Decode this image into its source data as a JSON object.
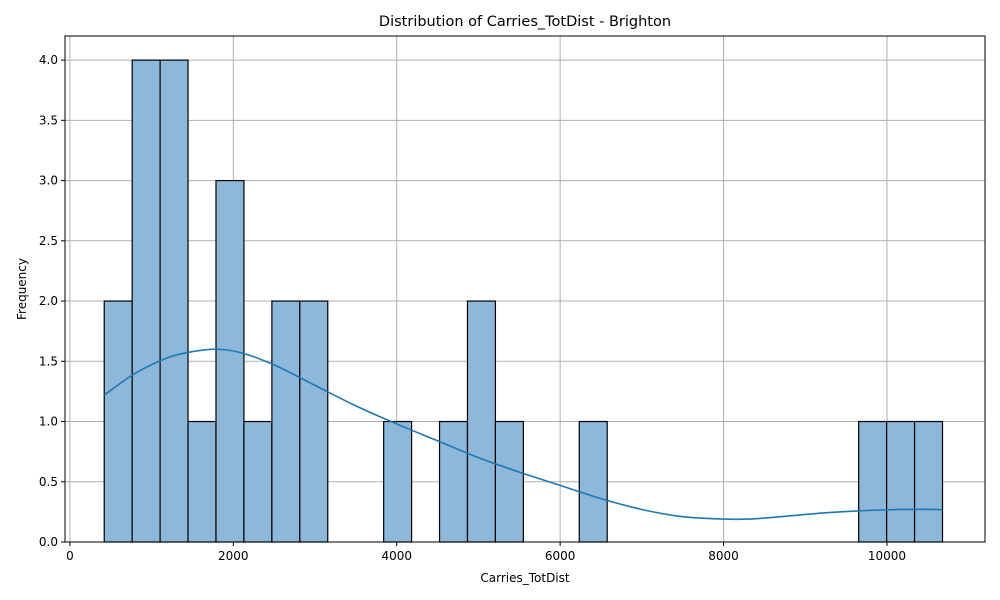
{
  "chart_data": {
    "type": "bar",
    "title": "Distribution of Carries_TotDist - Brighton",
    "xlabel": "Carries_TotDist",
    "ylabel": "Frequency",
    "xlim": [
      -60,
      11200
    ],
    "ylim": [
      0,
      4.2
    ],
    "xticks": [
      0,
      2000,
      4000,
      6000,
      8000,
      10000
    ],
    "xtick_labels": [
      "0",
      "2000",
      "4000",
      "6000",
      "8000",
      "10000"
    ],
    "yticks": [
      0,
      0.5,
      1.0,
      1.5,
      2.0,
      2.5,
      3.0,
      3.5,
      4.0
    ],
    "ytick_labels": [
      "0.0",
      "0.5",
      "1.0",
      "1.5",
      "2.0",
      "2.5",
      "3.0",
      "3.5",
      "4.0"
    ],
    "grid": true,
    "bar_color": "#8db8da",
    "bar_edge_color": "#000000",
    "kde_color": "#1f77b4",
    "bins": [
      {
        "x0": 420,
        "x1": 762,
        "count": 2
      },
      {
        "x0": 762,
        "x1": 1104,
        "count": 4
      },
      {
        "x0": 1104,
        "x1": 1446,
        "count": 4
      },
      {
        "x0": 1446,
        "x1": 1788,
        "count": 1
      },
      {
        "x0": 1788,
        "x1": 2130,
        "count": 3
      },
      {
        "x0": 2130,
        "x1": 2472,
        "count": 1
      },
      {
        "x0": 2472,
        "x1": 2814,
        "count": 2
      },
      {
        "x0": 2814,
        "x1": 3156,
        "count": 2
      },
      {
        "x0": 3156,
        "x1": 3498,
        "count": 0
      },
      {
        "x0": 3498,
        "x1": 3840,
        "count": 0
      },
      {
        "x0": 3840,
        "x1": 4182,
        "count": 1
      },
      {
        "x0": 4182,
        "x1": 4524,
        "count": 0
      },
      {
        "x0": 4524,
        "x1": 4866,
        "count": 1
      },
      {
        "x0": 4866,
        "x1": 5208,
        "count": 2
      },
      {
        "x0": 5208,
        "x1": 5550,
        "count": 1
      },
      {
        "x0": 5550,
        "x1": 5892,
        "count": 0
      },
      {
        "x0": 5892,
        "x1": 6234,
        "count": 0
      },
      {
        "x0": 6234,
        "x1": 6576,
        "count": 1
      },
      {
        "x0": 6576,
        "x1": 6918,
        "count": 0
      },
      {
        "x0": 6918,
        "x1": 7260,
        "count": 0
      },
      {
        "x0": 7260,
        "x1": 7602,
        "count": 0
      },
      {
        "x0": 7602,
        "x1": 7944,
        "count": 0
      },
      {
        "x0": 7944,
        "x1": 8286,
        "count": 0
      },
      {
        "x0": 8286,
        "x1": 8628,
        "count": 0
      },
      {
        "x0": 8628,
        "x1": 8970,
        "count": 0
      },
      {
        "x0": 8970,
        "x1": 9312,
        "count": 0
      },
      {
        "x0": 9312,
        "x1": 9654,
        "count": 0
      },
      {
        "x0": 9654,
        "x1": 9996,
        "count": 1
      },
      {
        "x0": 9996,
        "x1": 10338,
        "count": 1
      },
      {
        "x0": 10338,
        "x1": 10680,
        "count": 1
      }
    ],
    "kde": {
      "x": [
        420,
        800,
        1200,
        1500,
        1800,
        2100,
        2500,
        3000,
        3500,
        4000,
        4500,
        5000,
        5500,
        6000,
        6500,
        7000,
        7500,
        8000,
        8300,
        8700,
        9200,
        9700,
        10200,
        10600,
        10680
      ],
      "y": [
        1.22,
        1.4,
        1.53,
        1.58,
        1.6,
        1.57,
        1.47,
        1.3,
        1.13,
        0.98,
        0.84,
        0.7,
        0.58,
        0.47,
        0.36,
        0.27,
        0.21,
        0.19,
        0.19,
        0.21,
        0.24,
        0.26,
        0.27,
        0.27,
        0.26
      ]
    }
  }
}
